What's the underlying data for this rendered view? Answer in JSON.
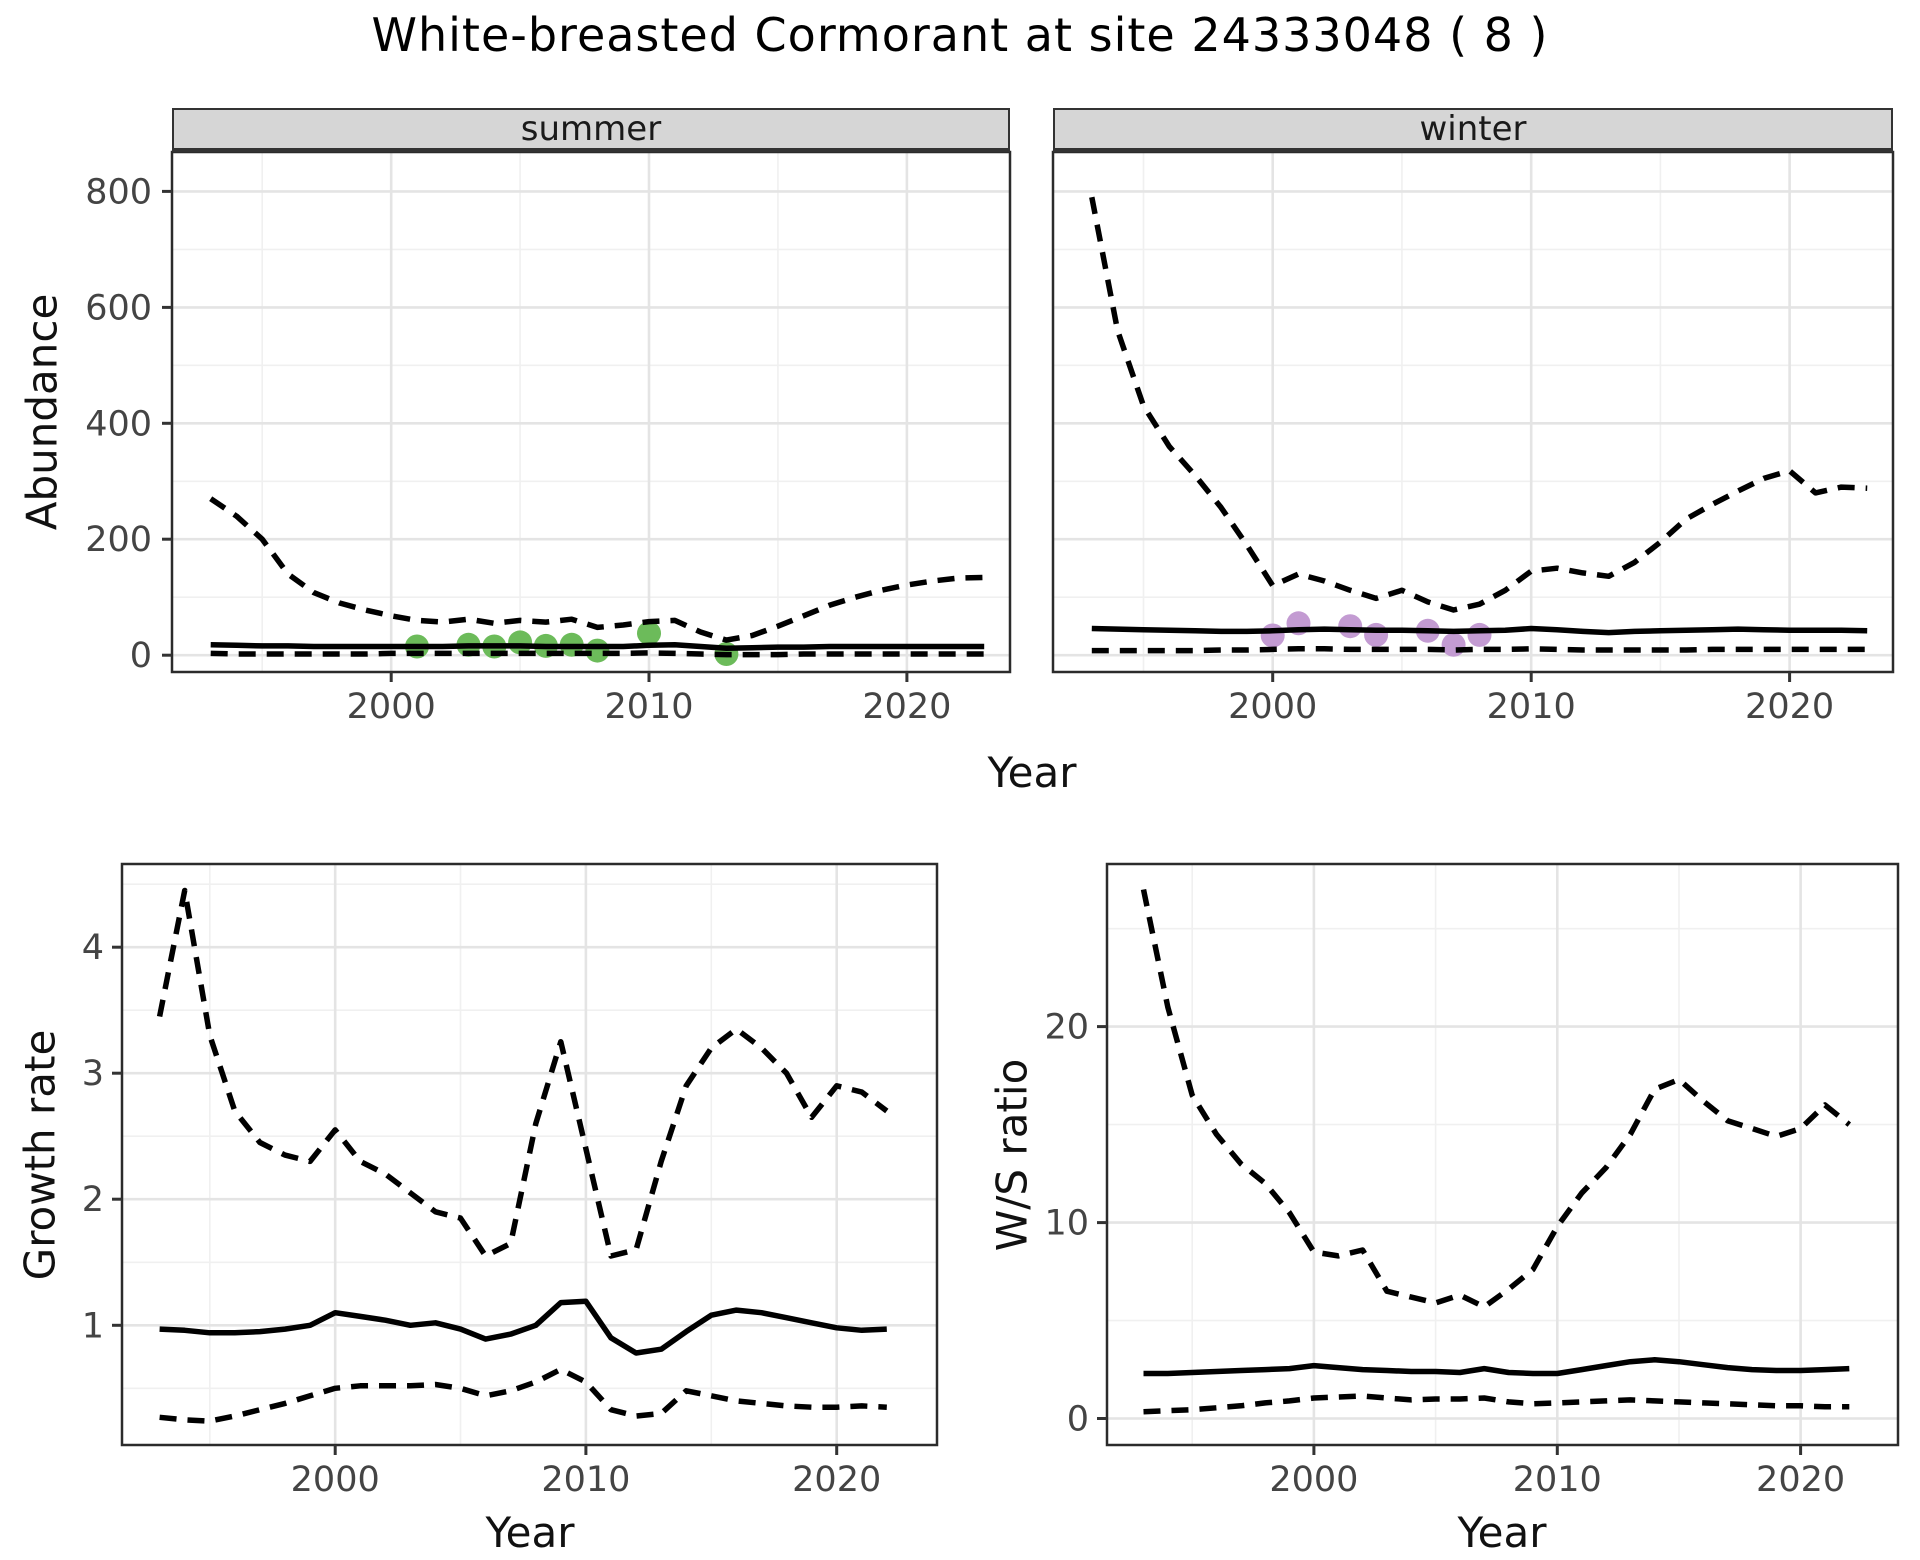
{
  "title": "White-breasted Cormorant at site 24333048 ( 8 )",
  "colors": {
    "summer_point": "#6CBB5A",
    "winter_point": "#C39BD2",
    "line": "#000000",
    "strip_bg": "#D6D6D6",
    "strip_border": "#333333",
    "panel_border": "#2b2b2b",
    "grid_major": "#E4E4E4",
    "grid_minor": "#F0F0F0",
    "axis_text": "#444444",
    "tick_mark": "#333333"
  },
  "chart_data": [
    {
      "id": "abundance-summer",
      "type": "line",
      "strip": "summer",
      "ylabel": "Abundance",
      "xlabel": "Year",
      "xlim": [
        1991.5,
        2024.0
      ],
      "ylim": [
        -29,
        868
      ],
      "x_ticks": [
        2000,
        2010,
        2020
      ],
      "x_minor": [
        1995,
        2005,
        2015
      ],
      "y_ticks": [
        0,
        200,
        400,
        600,
        800
      ],
      "y_minor": [
        100,
        300,
        500,
        700
      ],
      "series": [
        {
          "name": "median",
          "style": "solid",
          "x": [
            1993,
            1994,
            1995,
            1996,
            1997,
            1998,
            1999,
            2000,
            2001,
            2002,
            2003,
            2004,
            2005,
            2006,
            2007,
            2008,
            2009,
            2010,
            2011,
            2012,
            2013,
            2014,
            2015,
            2016,
            2017,
            2018,
            2019,
            2020,
            2021,
            2022,
            2023
          ],
          "y": [
            18,
            17,
            16,
            16,
            15,
            15,
            15,
            15,
            15,
            15,
            16,
            16,
            16,
            15,
            15,
            15,
            15,
            17,
            18,
            15,
            12,
            13,
            14,
            14,
            15,
            15,
            15,
            15,
            15,
            15,
            15
          ]
        },
        {
          "name": "upper_ci",
          "style": "dashed",
          "x": [
            1993,
            1994,
            1995,
            1996,
            1997,
            1998,
            1999,
            2000,
            2001,
            2002,
            2003,
            2004,
            2005,
            2006,
            2007,
            2008,
            2009,
            2010,
            2011,
            2012,
            2013,
            2014,
            2015,
            2016,
            2017,
            2018,
            2019,
            2020,
            2021,
            2022,
            2023
          ],
          "y": [
            270,
            240,
            200,
            140,
            108,
            90,
            78,
            68,
            60,
            57,
            62,
            55,
            60,
            57,
            62,
            48,
            52,
            58,
            60,
            40,
            26,
            34,
            50,
            68,
            86,
            100,
            112,
            121,
            128,
            133,
            134
          ]
        },
        {
          "name": "lower_ci",
          "style": "dashed",
          "x": [
            1993,
            1994,
            1995,
            1996,
            1997,
            1998,
            1999,
            2000,
            2001,
            2002,
            2003,
            2004,
            2005,
            2006,
            2007,
            2008,
            2009,
            2010,
            2011,
            2012,
            2013,
            2014,
            2015,
            2016,
            2017,
            2018,
            2019,
            2020,
            2021,
            2022,
            2023
          ],
          "y": [
            3,
            2,
            2,
            2,
            2,
            2,
            2,
            3,
            3,
            3,
            3,
            3,
            3,
            3,
            3,
            3,
            3,
            4,
            3,
            2,
            1,
            1,
            1,
            2,
            2,
            2,
            2,
            2,
            2,
            2,
            2
          ]
        }
      ],
      "points": {
        "name": "observed-counts",
        "color_key": "summer_point",
        "x": [
          2001,
          2003,
          2004,
          2005,
          2006,
          2007,
          2008,
          2010,
          2013
        ],
        "y": [
          15,
          18,
          15,
          22,
          16,
          18,
          8,
          38,
          2
        ]
      }
    },
    {
      "id": "abundance-winter",
      "type": "line",
      "strip": "winter",
      "ylabel": null,
      "xlabel": "Year",
      "xlim": [
        1991.5,
        2024.0
      ],
      "ylim": [
        -29,
        868
      ],
      "x_ticks": [
        2000,
        2010,
        2020
      ],
      "x_minor": [
        1995,
        2005,
        2015
      ],
      "y_ticks": [
        0,
        200,
        400,
        600,
        800
      ],
      "y_minor": [
        100,
        300,
        500,
        700
      ],
      "series": [
        {
          "name": "median",
          "style": "solid",
          "x": [
            1993,
            1994,
            1995,
            1996,
            1997,
            1998,
            1999,
            2000,
            2001,
            2002,
            2003,
            2004,
            2005,
            2006,
            2007,
            2008,
            2009,
            2010,
            2011,
            2012,
            2013,
            2014,
            2015,
            2016,
            2017,
            2018,
            2019,
            2020,
            2021,
            2022,
            2023
          ],
          "y": [
            46,
            45,
            44,
            43,
            42,
            41,
            41,
            42,
            44,
            45,
            44,
            43,
            43,
            42,
            41,
            42,
            43,
            46,
            44,
            41,
            39,
            41,
            42,
            43,
            44,
            45,
            44,
            43,
            43,
            43,
            42
          ]
        },
        {
          "name": "upper_ci",
          "style": "dashed",
          "x": [
            1993,
            1994,
            1995,
            1996,
            1997,
            1998,
            1999,
            2000,
            2001,
            2002,
            2003,
            2004,
            2005,
            2006,
            2007,
            2008,
            2009,
            2010,
            2011,
            2012,
            2013,
            2014,
            2015,
            2016,
            2017,
            2018,
            2019,
            2020,
            2021,
            2022,
            2023
          ],
          "y": [
            790,
            560,
            430,
            360,
            310,
            255,
            190,
            120,
            140,
            128,
            112,
            98,
            112,
            92,
            78,
            88,
            112,
            145,
            150,
            142,
            136,
            160,
            195,
            235,
            260,
            283,
            305,
            318,
            280,
            290,
            288
          ]
        },
        {
          "name": "lower_ci",
          "style": "dashed",
          "x": [
            1993,
            1994,
            1995,
            1996,
            1997,
            1998,
            1999,
            2000,
            2001,
            2002,
            2003,
            2004,
            2005,
            2006,
            2007,
            2008,
            2009,
            2010,
            2011,
            2012,
            2013,
            2014,
            2015,
            2016,
            2017,
            2018,
            2019,
            2020,
            2021,
            2022,
            2023
          ],
          "y": [
            8,
            8,
            8,
            8,
            8,
            9,
            9,
            10,
            11,
            11,
            10,
            10,
            10,
            10,
            9,
            10,
            10,
            11,
            10,
            9,
            9,
            9,
            9,
            9,
            10,
            10,
            10,
            10,
            10,
            10,
            10
          ]
        }
      ],
      "points": {
        "name": "observed-counts",
        "color_key": "winter_point",
        "x": [
          2000,
          2001,
          2003,
          2004,
          2006,
          2007,
          2008
        ],
        "y": [
          34,
          55,
          50,
          35,
          42,
          18,
          35
        ]
      }
    },
    {
      "id": "growth-rate",
      "type": "line",
      "strip": null,
      "ylabel": "Growth rate",
      "xlabel": "Year",
      "xlim": [
        1991.5,
        2024.0
      ],
      "ylim": [
        0.05,
        4.66
      ],
      "x_ticks": [
        2000,
        2010,
        2020
      ],
      "x_minor": [
        1995,
        2005,
        2015
      ],
      "y_ticks": [
        1,
        2,
        3,
        4
      ],
      "y_minor": [
        0.5,
        1.5,
        2.5,
        3.5,
        4.5
      ],
      "series": [
        {
          "name": "median",
          "style": "solid",
          "x": [
            1993,
            1994,
            1995,
            1996,
            1997,
            1998,
            1999,
            2000,
            2001,
            2002,
            2003,
            2004,
            2005,
            2006,
            2007,
            2008,
            2009,
            2010,
            2011,
            2012,
            2013,
            2014,
            2015,
            2016,
            2017,
            2018,
            2019,
            2020,
            2021,
            2022
          ],
          "y": [
            0.97,
            0.96,
            0.94,
            0.94,
            0.95,
            0.97,
            1.0,
            1.1,
            1.07,
            1.04,
            1.0,
            1.02,
            0.97,
            0.89,
            0.93,
            1.0,
            1.18,
            1.19,
            0.9,
            0.78,
            0.81,
            0.95,
            1.08,
            1.12,
            1.1,
            1.06,
            1.02,
            0.98,
            0.96,
            0.97
          ]
        },
        {
          "name": "upper_ci",
          "style": "dashed",
          "x": [
            1993,
            1994,
            1995,
            1996,
            1997,
            1998,
            1999,
            2000,
            2001,
            2002,
            2003,
            2004,
            2005,
            2006,
            2007,
            2008,
            2009,
            2010,
            2011,
            2012,
            2013,
            2014,
            2015,
            2016,
            2017,
            2018,
            2019,
            2020,
            2021,
            2022
          ],
          "y": [
            3.45,
            4.45,
            3.3,
            2.7,
            2.45,
            2.35,
            2.3,
            2.55,
            2.3,
            2.2,
            2.05,
            1.9,
            1.85,
            1.55,
            1.65,
            2.6,
            3.25,
            2.4,
            1.55,
            1.6,
            2.3,
            2.9,
            3.2,
            3.35,
            3.2,
            3.0,
            2.65,
            2.9,
            2.85,
            2.7
          ]
        },
        {
          "name": "lower_ci",
          "style": "dashed",
          "x": [
            1993,
            1994,
            1995,
            1996,
            1997,
            1998,
            1999,
            2000,
            2001,
            2002,
            2003,
            2004,
            2005,
            2006,
            2007,
            2008,
            2009,
            2010,
            2011,
            2012,
            2013,
            2014,
            2015,
            2016,
            2017,
            2018,
            2019,
            2020,
            2021,
            2022
          ],
          "y": [
            0.27,
            0.25,
            0.24,
            0.28,
            0.33,
            0.38,
            0.44,
            0.5,
            0.52,
            0.52,
            0.52,
            0.53,
            0.5,
            0.44,
            0.48,
            0.55,
            0.65,
            0.55,
            0.33,
            0.28,
            0.3,
            0.48,
            0.44,
            0.4,
            0.38,
            0.36,
            0.35,
            0.35,
            0.36,
            0.35
          ]
        }
      ],
      "points": null
    },
    {
      "id": "ws-ratio",
      "type": "line",
      "strip": null,
      "ylabel": "W/S ratio",
      "xlabel": "Year",
      "xlim": [
        1991.5,
        2024.0
      ],
      "ylim": [
        -1.35,
        28.3
      ],
      "x_ticks": [
        2000,
        2010,
        2020
      ],
      "x_minor": [
        1995,
        2005,
        2015
      ],
      "y_ticks": [
        0,
        10,
        20
      ],
      "y_minor": [
        5,
        15,
        25
      ],
      "series": [
        {
          "name": "median",
          "style": "solid",
          "x": [
            1993,
            1994,
            1995,
            1996,
            1997,
            1998,
            1999,
            2000,
            2001,
            2002,
            2003,
            2004,
            2005,
            2006,
            2007,
            2008,
            2009,
            2010,
            2011,
            2012,
            2013,
            2014,
            2015,
            2016,
            2017,
            2018,
            2019,
            2020,
            2021,
            2022
          ],
          "y": [
            2.3,
            2.3,
            2.35,
            2.4,
            2.45,
            2.5,
            2.55,
            2.7,
            2.6,
            2.5,
            2.45,
            2.4,
            2.4,
            2.35,
            2.55,
            2.35,
            2.3,
            2.3,
            2.5,
            2.7,
            2.9,
            3.0,
            2.9,
            2.75,
            2.6,
            2.5,
            2.45,
            2.45,
            2.5,
            2.55
          ]
        },
        {
          "name": "upper_ci",
          "style": "dashed",
          "x": [
            1993,
            1994,
            1995,
            1996,
            1997,
            1998,
            1999,
            2000,
            2001,
            2002,
            2003,
            2004,
            2005,
            2006,
            2007,
            2008,
            2009,
            2010,
            2011,
            2012,
            2013,
            2014,
            2015,
            2016,
            2017,
            2018,
            2019,
            2020,
            2021,
            2022
          ],
          "y": [
            27,
            21,
            16.5,
            14.5,
            13,
            12,
            10.5,
            8.5,
            8.3,
            8.6,
            6.5,
            6.2,
            5.9,
            6.3,
            5.7,
            6.6,
            7.6,
            9.8,
            11.5,
            12.8,
            14.5,
            16.8,
            17.3,
            16.2,
            15.2,
            14.8,
            14.4,
            14.8,
            16.0,
            15.0
          ]
        },
        {
          "name": "lower_ci",
          "style": "dashed",
          "x": [
            1993,
            1994,
            1995,
            1996,
            1997,
            1998,
            1999,
            2000,
            2001,
            2002,
            2003,
            2004,
            2005,
            2006,
            2007,
            2008,
            2009,
            2010,
            2011,
            2012,
            2013,
            2014,
            2015,
            2016,
            2017,
            2018,
            2019,
            2020,
            2021,
            2022
          ],
          "y": [
            0.35,
            0.4,
            0.45,
            0.55,
            0.65,
            0.8,
            0.9,
            1.05,
            1.1,
            1.15,
            1.05,
            0.95,
            1.0,
            1.0,
            1.05,
            0.85,
            0.75,
            0.8,
            0.85,
            0.9,
            0.95,
            0.9,
            0.85,
            0.8,
            0.75,
            0.7,
            0.65,
            0.65,
            0.6,
            0.6
          ]
        }
      ],
      "points": null
    }
  ]
}
